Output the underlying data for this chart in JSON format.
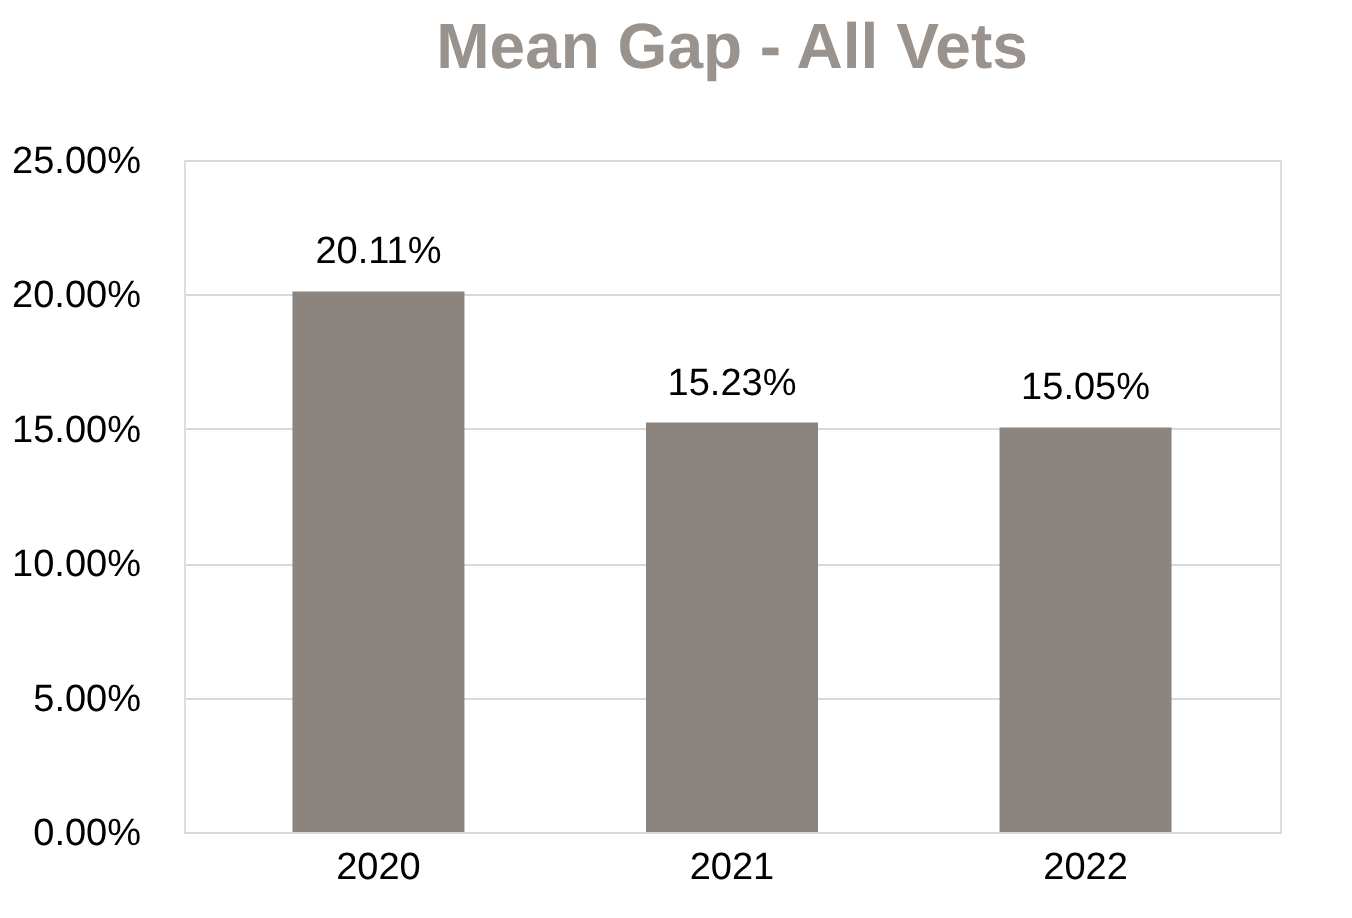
{
  "chart_data": {
    "type": "bar",
    "title": "Mean Gap - All Vets",
    "categories": [
      "2020",
      "2021",
      "2022"
    ],
    "values": [
      20.11,
      15.23,
      15.05
    ],
    "value_labels": [
      "20.11%",
      "15.23%",
      "15.05%"
    ],
    "color": "#8c857f",
    "ylim": [
      0,
      25
    ],
    "yticks": [
      {
        "value": 0,
        "label": "0.00%"
      },
      {
        "value": 5,
        "label": "5.00%"
      },
      {
        "value": 10,
        "label": "10.00%"
      },
      {
        "value": 15,
        "label": "15.00%"
      },
      {
        "value": 20,
        "label": "20.00%"
      },
      {
        "value": 25,
        "label": "25.00%"
      }
    ],
    "grid": "y"
  }
}
